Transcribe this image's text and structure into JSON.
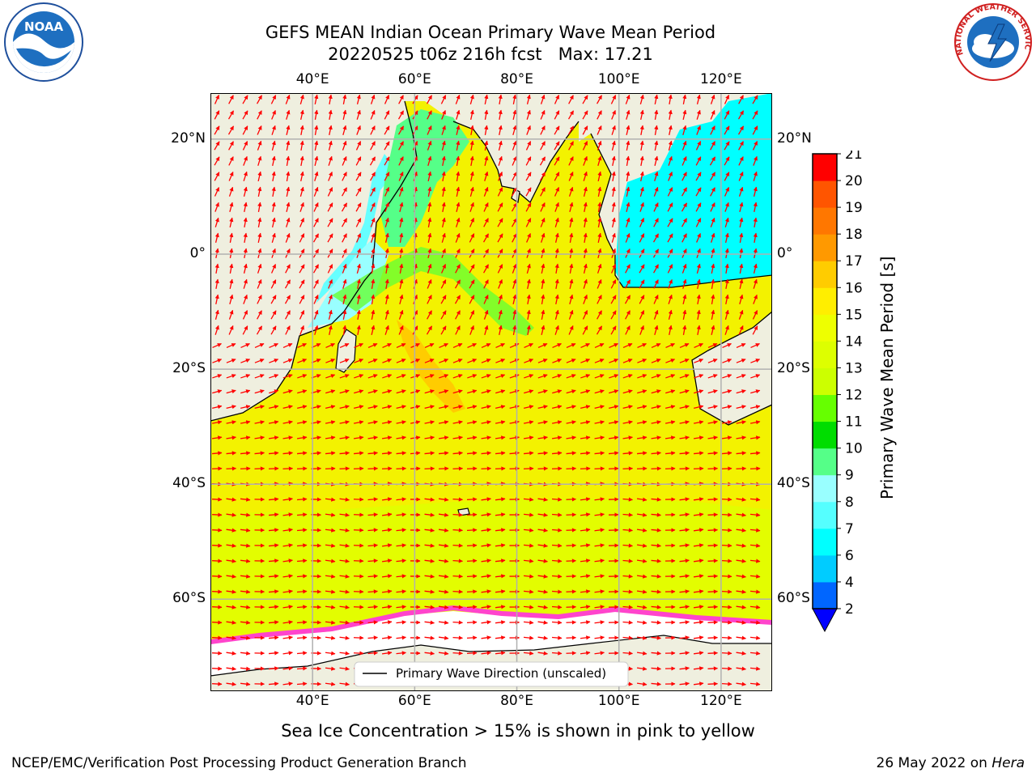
{
  "title": {
    "line1": "GEFS MEAN Indian Ocean Primary Wave Mean Period",
    "line2": "20220525 t06z 216h fcst   Max: 17.21"
  },
  "map": {
    "lon_ticks_top": [
      "40°E",
      "60°E",
      "80°E",
      "100°E",
      "120°E"
    ],
    "lon_ticks_bottom": [
      "40°E",
      "60°E",
      "80°E",
      "100°E",
      "120°E"
    ],
    "lat_ticks_left": [
      "20°N",
      "0°",
      "20°S",
      "40°S",
      "60°S"
    ],
    "lat_ticks_right": [
      "20°N",
      "0°",
      "20°S",
      "40°S",
      "60°S"
    ],
    "lon_values": [
      40,
      60,
      80,
      100,
      120
    ],
    "lat_values": [
      20,
      0,
      -20,
      -40,
      -60
    ],
    "lon_range": [
      20,
      130
    ],
    "lat_range": [
      -76,
      28
    ],
    "grid": true,
    "legend_label": "Primary Wave Direction (unscaled)",
    "colors": {
      "land": "#efefdf",
      "ocean_main": "#f3f200",
      "arrow": "#ff0000",
      "ice": "#ffffff"
    }
  },
  "colorbar": {
    "label": "Primary Wave Mean Period [s]",
    "ticks": [
      "2",
      "4",
      "6",
      "7",
      "8",
      "9",
      "10",
      "11",
      "12",
      "13",
      "14",
      "15",
      "16",
      "17",
      "18",
      "19",
      "20",
      "21"
    ],
    "colors": [
      "#0066ff",
      "#00ccff",
      "#00ffff",
      "#55ffff",
      "#99ffff",
      "#55ff88",
      "#00dd00",
      "#66ff00",
      "#ccff00",
      "#ddff00",
      "#eeff00",
      "#ffee00",
      "#ffcc00",
      "#ff9900",
      "#ff7700",
      "#ff5500",
      "#ff0000"
    ],
    "extend_color": "#0000ff"
  },
  "logos": {
    "left_text": "NOAA",
    "right_text": "NATIONAL WEATHER SERVICE"
  },
  "footer": {
    "caption": "Sea Ice Concentration > 15% is shown in pink to yellow",
    "credit_left": "NCEP/EMC/Verification Post Processing Product Generation Branch",
    "credit_right_prefix": "26 May 2022 on ",
    "credit_right_host": "Hera"
  }
}
